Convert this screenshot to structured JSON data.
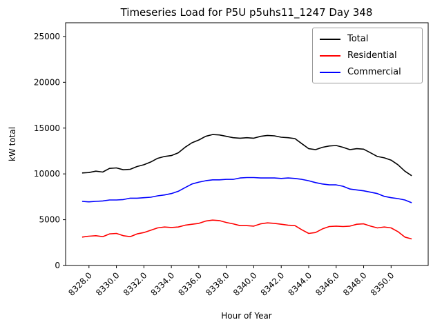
{
  "chart_data": {
    "type": "line",
    "title": "Timeseries Load for P5U p5uhs11_1247  Day 348",
    "xlabel": "Hour of Year",
    "ylabel": "kW total",
    "xlim": [
      8326.3,
      8352.7
    ],
    "ylim": [
      0,
      26500
    ],
    "grid": false,
    "legend_position": "upper right",
    "xtick_values": [
      8328,
      8330,
      8332,
      8334,
      8336,
      8338,
      8340,
      8342,
      8344,
      8346,
      8348,
      8350
    ],
    "xtick_labels": [
      "8328.0",
      "8330.0",
      "8332.0",
      "8334.0",
      "8336.0",
      "8338.0",
      "8340.0",
      "8342.0",
      "8344.0",
      "8346.0",
      "8348.0",
      "8350.0"
    ],
    "ytick_values": [
      0,
      5000,
      10000,
      15000,
      20000,
      25000
    ],
    "ytick_labels": [
      "0",
      "5000",
      "10000",
      "15000",
      "20000",
      "25000"
    ],
    "x": [
      8327.5,
      8328.0,
      8328.5,
      8329.0,
      8329.5,
      8330.0,
      8330.5,
      8331.0,
      8331.5,
      8332.0,
      8332.5,
      8333.0,
      8333.5,
      8334.0,
      8334.5,
      8335.0,
      8335.5,
      8336.0,
      8336.5,
      8337.0,
      8337.5,
      8338.0,
      8338.5,
      8339.0,
      8339.5,
      8340.0,
      8340.5,
      8341.0,
      8341.5,
      8342.0,
      8342.5,
      8343.0,
      8343.5,
      8344.0,
      8344.5,
      8345.0,
      8345.5,
      8346.0,
      8346.5,
      8347.0,
      8347.5,
      8348.0,
      8348.5,
      8349.0,
      8349.5,
      8350.0,
      8350.5,
      8351.0,
      8351.5
    ],
    "series": [
      {
        "name": "Total",
        "color": "#000000",
        "values": [
          10100,
          10150,
          10300,
          10200,
          10600,
          10650,
          10450,
          10500,
          10800,
          11000,
          11300,
          11700,
          11900,
          12000,
          12300,
          12900,
          13400,
          13700,
          14100,
          14300,
          14250,
          14100,
          13950,
          13900,
          13950,
          13900,
          14100,
          14200,
          14150,
          14000,
          13950,
          13850,
          13300,
          12750,
          12650,
          12900,
          13050,
          13100,
          12900,
          12650,
          12750,
          12700,
          12300,
          11900,
          11750,
          11500,
          11000,
          10300,
          9800
        ]
      },
      {
        "name": "Residential",
        "color": "#ff0000",
        "values": [
          3100,
          3200,
          3250,
          3150,
          3450,
          3500,
          3250,
          3150,
          3450,
          3600,
          3850,
          4100,
          4200,
          4150,
          4200,
          4400,
          4500,
          4600,
          4850,
          4950,
          4900,
          4700,
          4550,
          4350,
          4350,
          4300,
          4550,
          4650,
          4600,
          4500,
          4400,
          4350,
          3900,
          3500,
          3600,
          4000,
          4250,
          4300,
          4250,
          4300,
          4500,
          4550,
          4300,
          4100,
          4200,
          4100,
          3700,
          3100,
          2900
        ]
      },
      {
        "name": "Commercial",
        "color": "#0000ff",
        "values": [
          7000,
          6950,
          7000,
          7050,
          7150,
          7150,
          7200,
          7350,
          7350,
          7400,
          7450,
          7600,
          7700,
          7850,
          8100,
          8500,
          8900,
          9100,
          9250,
          9350,
          9350,
          9400,
          9400,
          9550,
          9600,
          9600,
          9550,
          9550,
          9550,
          9500,
          9550,
          9500,
          9400,
          9250,
          9050,
          8900,
          8800,
          8800,
          8650,
          8350,
          8250,
          8150,
          8000,
          7850,
          7550,
          7400,
          7300,
          7150,
          6850
        ]
      }
    ]
  }
}
